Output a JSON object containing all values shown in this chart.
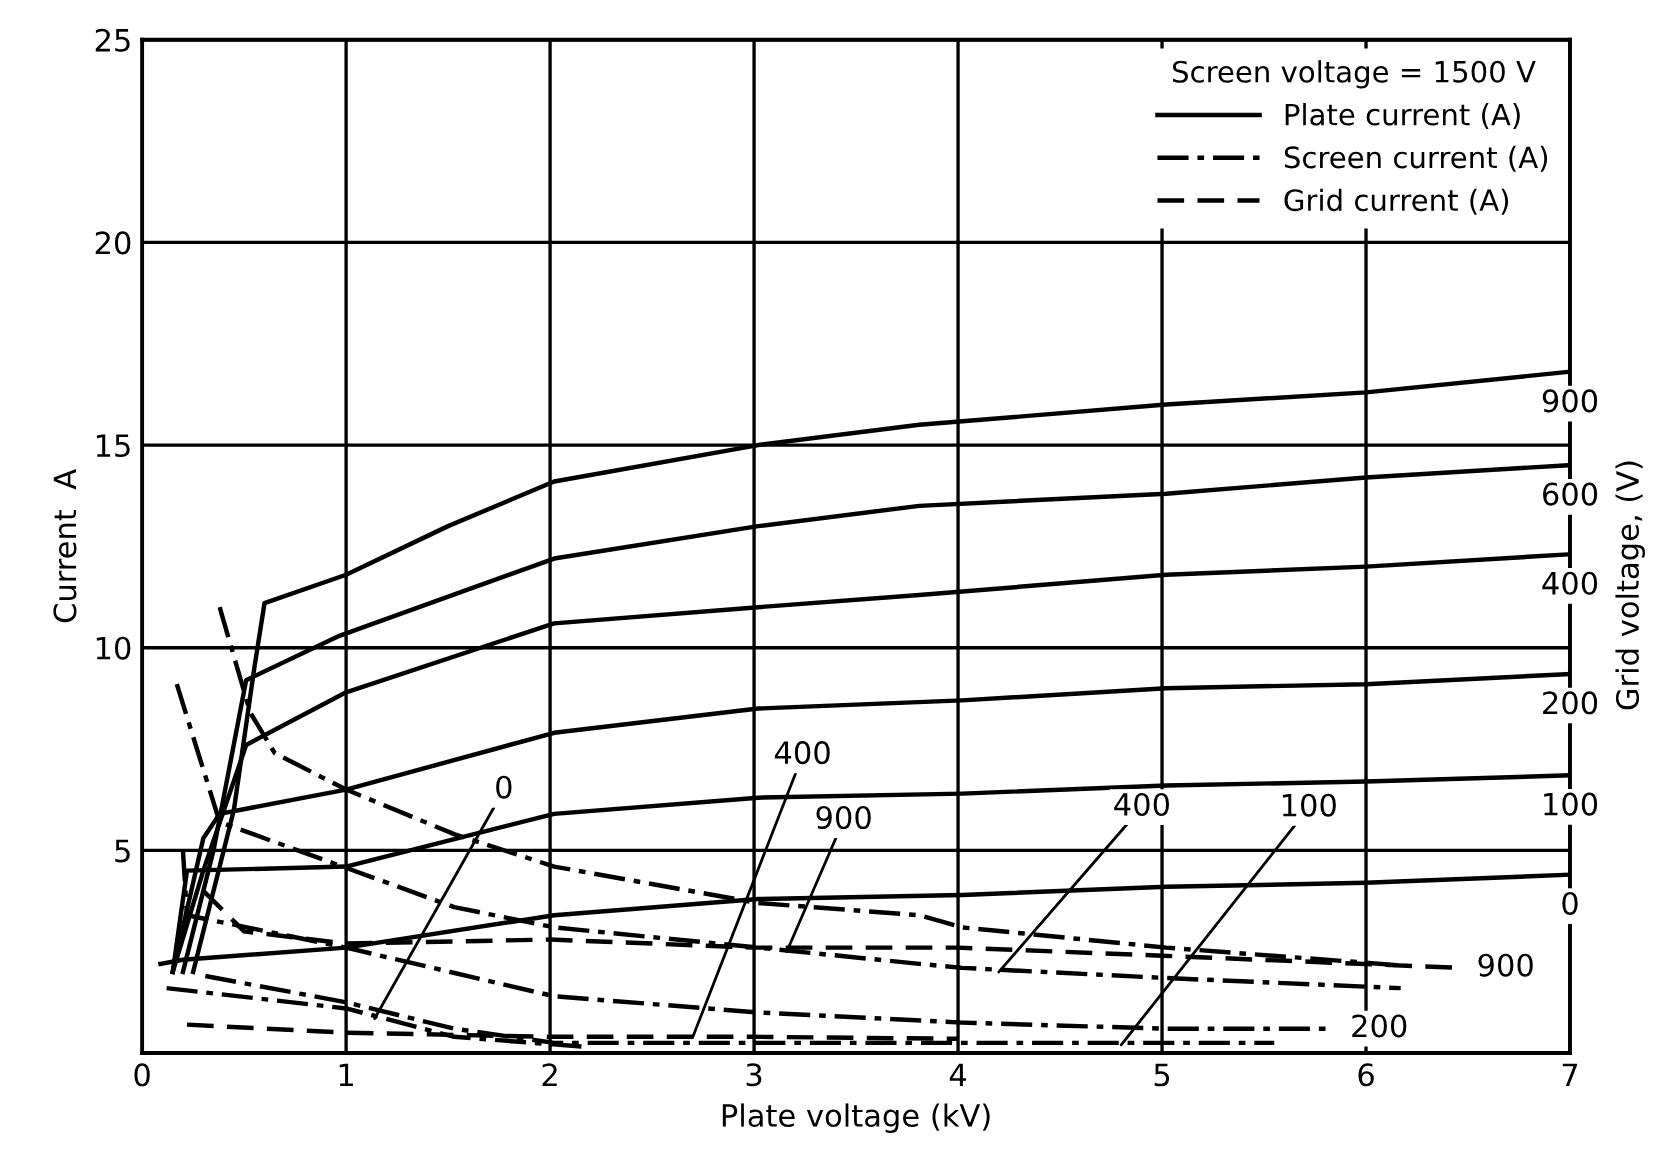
{
  "chart_data": {
    "type": "line",
    "xlabel": "Plate voltage (kV)",
    "ylabel": "Current  A",
    "legend_title": "Screen voltage = 1500 V",
    "legend": "top right",
    "grid": true,
    "marker": "none",
    "xlim": [
      0,
      7
    ],
    "xticks": [
      0,
      1,
      2,
      3,
      4,
      5,
      6,
      7
    ],
    "ylim": [
      0,
      25
    ],
    "yticks": [
      5,
      10,
      15,
      20,
      25
    ],
    "series": [
      {
        "name": "Plate current (A)",
        "color": "#000000",
        "line_style": "solid",
        "x": [
          0.25,
          0.45,
          0.55,
          0.6,
          1,
          1.5,
          2.02,
          3.02,
          3.81,
          5.02,
          6,
          6.98
        ],
        "values": [
          2,
          6,
          9.5,
          11.1,
          11.8,
          13,
          14.1,
          15,
          15.5,
          16,
          16.3,
          16.8
        ]
      },
      {
        "color": "#000000",
        "line_style": "solid",
        "x": [
          0.2,
          0.35,
          0.51,
          0.97,
          2.02,
          3.02,
          3.81,
          5.02,
          6,
          6.98
        ],
        "values": [
          2,
          5,
          9.2,
          10.3,
          12.2,
          13,
          13.5,
          13.8,
          14.2,
          14.5
        ]
      },
      {
        "color": "#000000",
        "line_style": "solid",
        "x": [
          0.15,
          0.3,
          0.51,
          1,
          2.02,
          3.02,
          3.81,
          5.02,
          6,
          6.98
        ],
        "values": [
          2,
          4.5,
          7.6,
          8.9,
          10.6,
          11,
          11.3,
          11.8,
          12,
          12.3
        ]
      },
      {
        "color": "#000000",
        "line_style": "solid",
        "x": [
          0.15,
          0.3,
          0.38,
          1,
          2.02,
          3.02,
          4.02,
          5.02,
          6,
          7
        ],
        "values": [
          2,
          5.3,
          5.9,
          6.5,
          7.9,
          8.5,
          8.7,
          9,
          9.1,
          9.35
        ]
      },
      {
        "color": "#000000",
        "line_style": "solid",
        "x": [
          0.15,
          0.22,
          1,
          2.02,
          3.02,
          4.02,
          5.02,
          6,
          7
        ],
        "values": [
          2,
          4.5,
          4.6,
          5.9,
          6.3,
          6.4,
          6.6,
          6.7,
          6.85
        ]
      },
      {
        "color": "#000000",
        "line_style": "solid",
        "x": [
          0.09,
          0.2,
          1,
          2.02,
          3.02,
          4.02,
          5.02,
          6,
          7
        ],
        "values": [
          2.2,
          2.3,
          2.6,
          3.4,
          3.8,
          3.9,
          4.1,
          4.2,
          4.4
        ]
      },
      {
        "name": "Screen current (A)",
        "color": "#000000",
        "line_style": "dashdot",
        "x": [
          0.38,
          0.53,
          0.65,
          1,
          1.53,
          2.02,
          3.02,
          3.81,
          4.02,
          5.02,
          6.2
        ],
        "values": [
          11,
          8.4,
          7.4,
          6.5,
          5.4,
          4.6,
          3.7,
          3.4,
          3.1,
          2.6,
          2.15
        ]
      },
      {
        "color": "#000000",
        "line_style": "dashdot",
        "x": [
          0.17,
          0.38,
          1.53,
          2.02,
          3.02,
          3.81,
          4.02,
          5.02,
          6.17
        ],
        "values": [
          9.1,
          5.7,
          3.6,
          3.1,
          2.6,
          2.2,
          2.1,
          1.85,
          1.6
        ]
      },
      {
        "color": "#000000",
        "line_style": "dashdot",
        "x": [
          0.2,
          0.22,
          1,
          2.02,
          3.02,
          4.02,
          5.02,
          5.84
        ],
        "values": [
          5,
          3.4,
          2.6,
          1.4,
          1,
          0.75,
          0.6,
          0.6
        ]
      },
      {
        "color": "#000000",
        "line_style": "dashdot",
        "x": [
          0.31,
          1,
          1.53,
          2.02,
          5.02,
          5.55
        ],
        "values": [
          1.9,
          1.25,
          0.6,
          0.25,
          0.25,
          0.25
        ]
      },
      {
        "color": "#000000",
        "line_style": "dashdot",
        "x": [
          0.12,
          1,
          1.53,
          2.18
        ],
        "values": [
          1.6,
          1.1,
          0.4,
          0.15
        ]
      },
      {
        "name": "Grid current (A)",
        "color": "#000000",
        "line_style": "dashed",
        "x": [
          0.3,
          0.5,
          1,
          2,
          3,
          4,
          5,
          6.46
        ],
        "values": [
          4,
          3,
          2.7,
          2.8,
          2.6,
          2.6,
          2.4,
          2.1
        ]
      },
      {
        "color": "#000000",
        "line_style": "dashed",
        "x": [
          0.22,
          1,
          2,
          3,
          4
        ],
        "values": [
          0.7,
          0.5,
          0.4,
          0.4,
          0.35
        ]
      }
    ],
    "annotations": [
      {
        "text": "900",
        "x": 7,
        "y": 16.8
      },
      {
        "text": "600",
        "x": 7,
        "y": 14.5
      },
      {
        "text": "400",
        "x": 7,
        "y": 12.3
      },
      {
        "text": "200",
        "x": 7,
        "y": 9.35
      },
      {
        "text": "100",
        "x": 7,
        "y": 6.85
      },
      {
        "text": "0",
        "x": 7,
        "y": 4.4
      },
      {
        "text": "0",
        "x": 1.14,
        "y": 0.85
      },
      {
        "text": "400",
        "x": 2.7,
        "y": 0.4
      },
      {
        "text": "900",
        "x": 3.16,
        "y": 2.5
      },
      {
        "text": "400",
        "x": 4.2,
        "y": 2.0
      },
      {
        "text": "100",
        "x": 4.8,
        "y": 0.2
      },
      {
        "text": "900",
        "x": 6.46,
        "y": 2.1
      },
      {
        "text": "200",
        "x": 5.84,
        "y": 0.6
      },
      "Grid voltage, (V)"
    ]
  }
}
